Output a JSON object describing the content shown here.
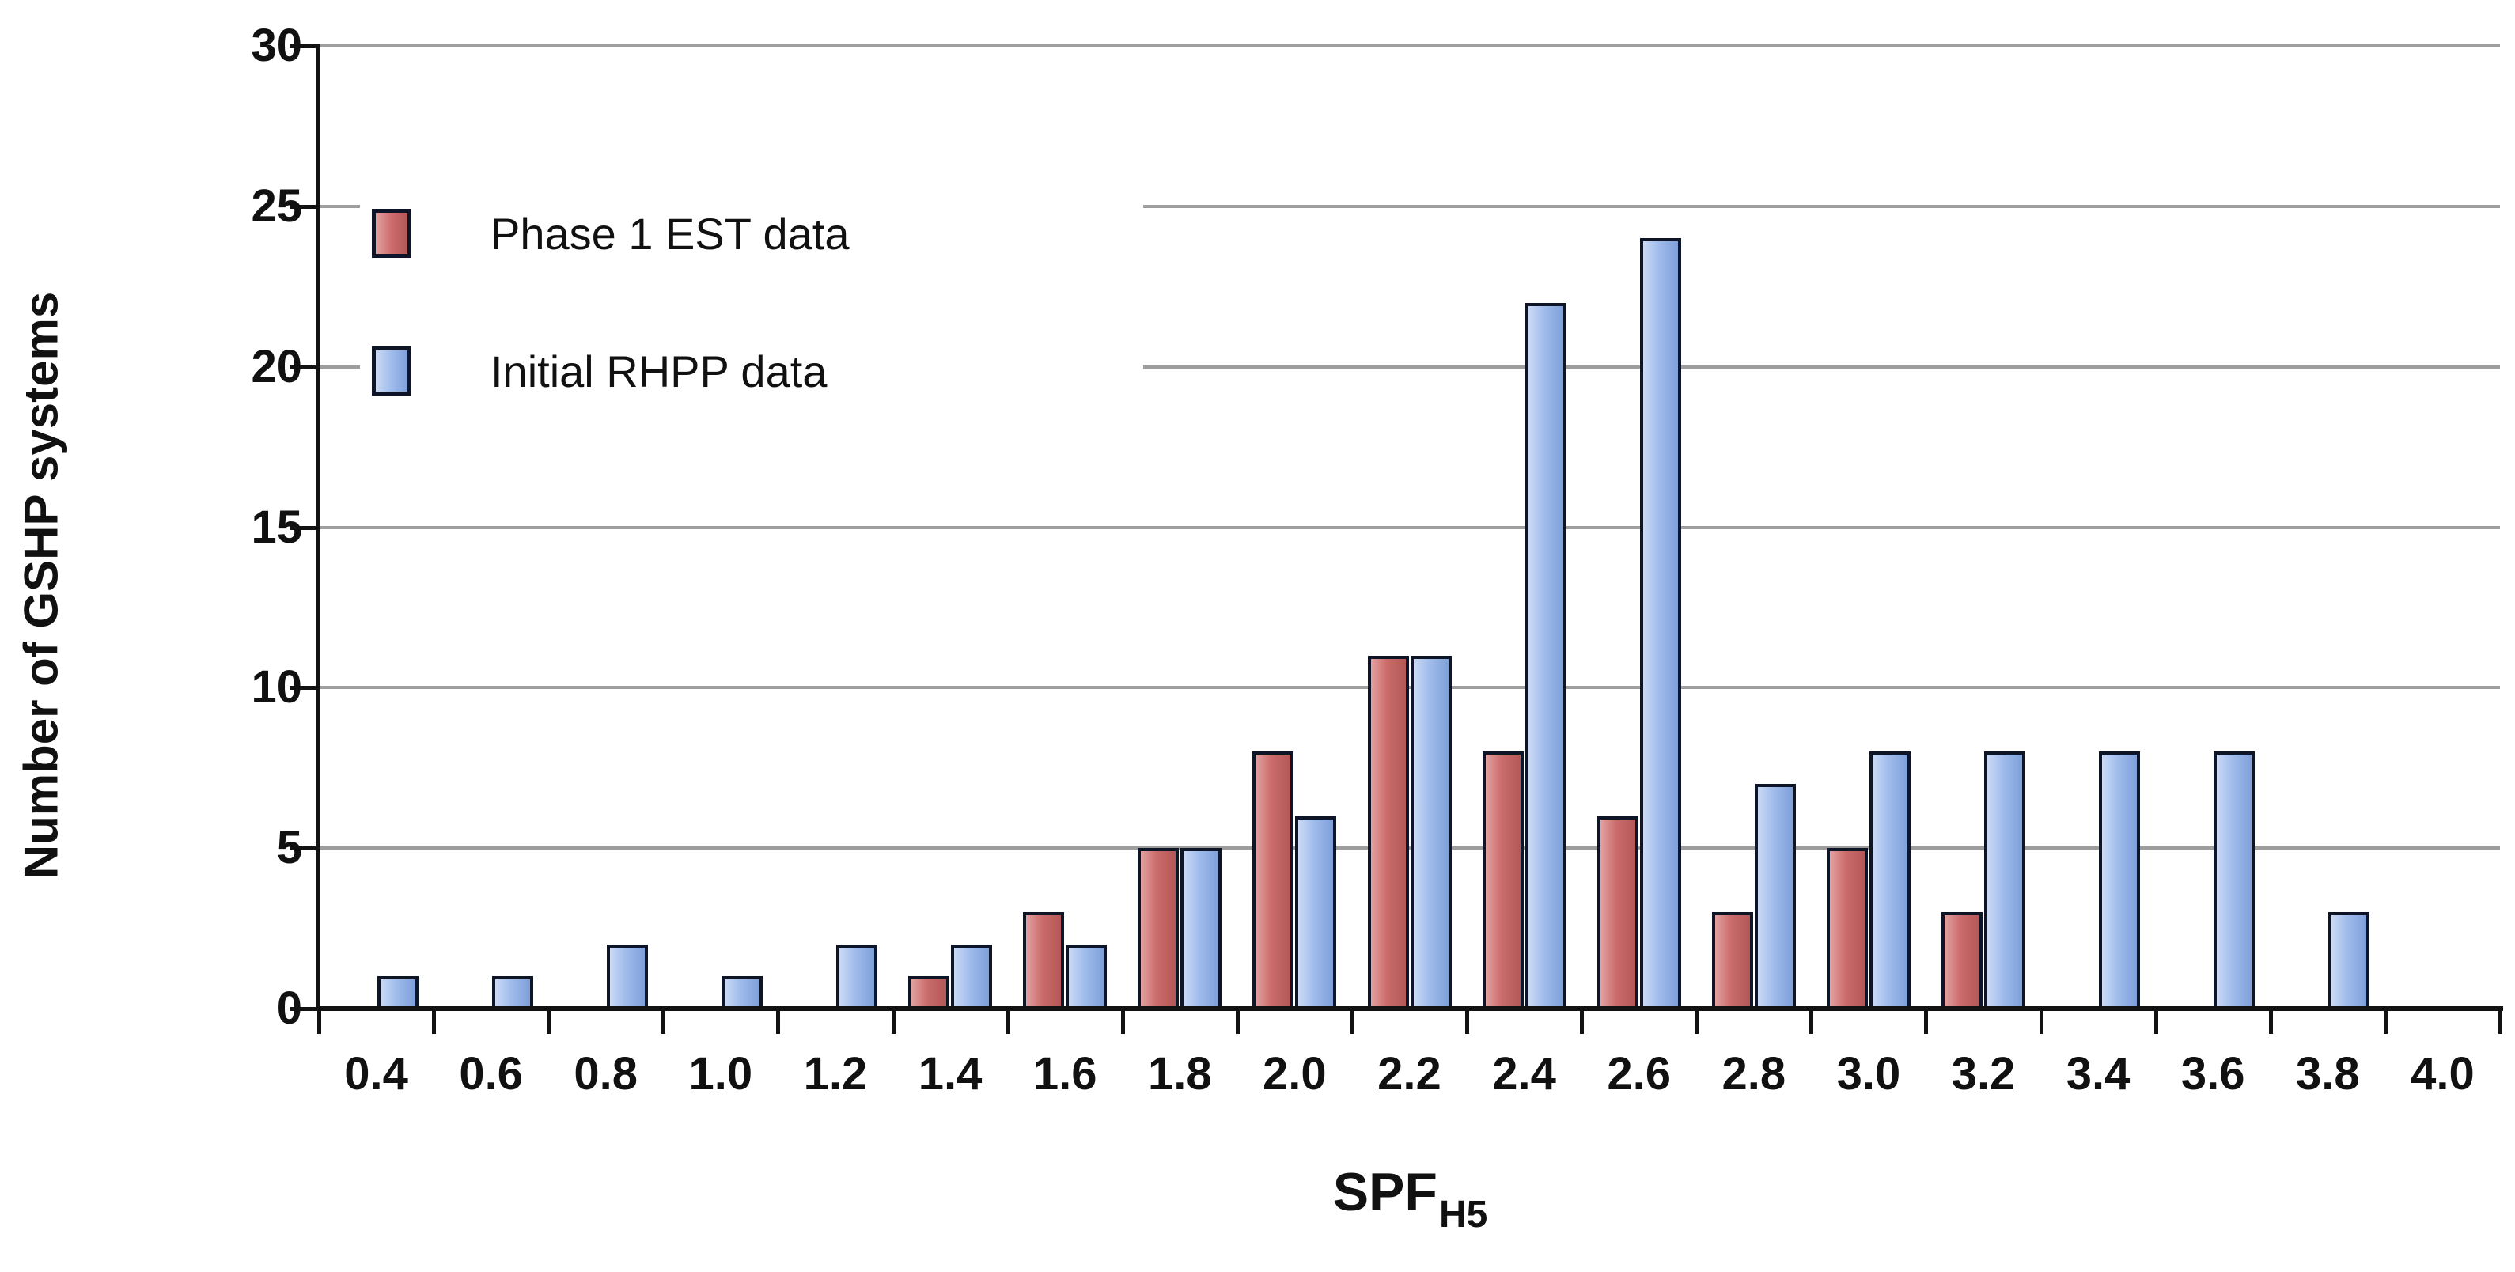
{
  "colors": {
    "red_light": "#E2A2A2",
    "red_mid": "#CC6C6C",
    "red_dark": "#B35757",
    "blue_light": "#CBDAF5",
    "blue_mid": "#A0BCEC",
    "blue_dark": "#7E9FD9",
    "outline": "#0E1526",
    "gridline": "#9E9E9E",
    "axis": "#121212",
    "text": "#111111",
    "background": "#FFFFFF"
  },
  "chart_data": {
    "type": "bar",
    "title": "",
    "xlabel": "SPF",
    "xlabel_subscript": "H5",
    "ylabel": "Number of GSHP systems",
    "categories": [
      "0.4",
      "0.6",
      "0.8",
      "1.0",
      "1.2",
      "1.4",
      "1.6",
      "1.8",
      "2.0",
      "2.2",
      "2.4",
      "2.6",
      "2.8",
      "3.0",
      "3.2",
      "3.4",
      "3.6",
      "3.8",
      "4.0"
    ],
    "series": [
      {
        "name": "Phase 1 EST data",
        "color": "#CC6C6C",
        "values": [
          0,
          0,
          0,
          0,
          0,
          1,
          3,
          5,
          8,
          11,
          8,
          6,
          3,
          5,
          3,
          0,
          0,
          0,
          0
        ]
      },
      {
        "name": "Initial RHPP data",
        "color": "#A0BCEC",
        "values": [
          1,
          1,
          2,
          1,
          2,
          2,
          2,
          5,
          6,
          11,
          22,
          24,
          7,
          8,
          8,
          8,
          8,
          3,
          0
        ]
      }
    ],
    "ylim": [
      0,
      30
    ],
    "ytick_step": 5,
    "ytick_labels": [
      "0",
      "5",
      "10",
      "15",
      "20",
      "25",
      "30"
    ],
    "grid": true,
    "legend_position": "top-left-inside"
  }
}
